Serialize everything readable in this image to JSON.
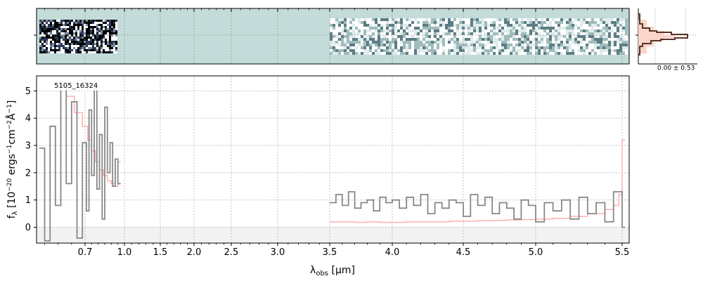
{
  "chart_data": {
    "type": "line",
    "object_label": "5105_16324",
    "xlabel": "λobs [μm]",
    "ylabel": "fλ [10⁻²⁰ ergs⁻¹cm⁻²Å⁻¹]",
    "xlim": [
      0.52,
      5.53
    ],
    "ylim": [
      -0.58,
      5.55
    ],
    "x_scale": "piecewise",
    "grid": true,
    "x_ticks": [
      0.7,
      1.0,
      1.5,
      2.0,
      2.5,
      3.0,
      3.5,
      4.0,
      4.5,
      5.0,
      5.5
    ],
    "x_tick_labels": [
      "0.7",
      "1.0",
      "1.5",
      "2.0",
      "2.5",
      "3.0",
      "3.5",
      "4.0",
      "4.5",
      "5.0",
      "5.5"
    ],
    "y_ticks": [
      0,
      1,
      2,
      3,
      4,
      5
    ],
    "y_tick_labels": [
      "0",
      "1",
      "2",
      "3",
      "4",
      "5"
    ],
    "series": [
      {
        "color": "#888888",
        "x": [
          0.53,
          0.55,
          0.57,
          0.59,
          0.61,
          0.63,
          0.65,
          0.67,
          0.69,
          0.71,
          0.73,
          0.75,
          0.77,
          0.79,
          0.81,
          0.83,
          0.85,
          0.87,
          0.89,
          0.91,
          0.93,
          0.95,
          3.5,
          3.55,
          3.6,
          3.65,
          3.7,
          3.75,
          3.8,
          3.85,
          3.9,
          3.95,
          4.0,
          4.05,
          4.1,
          4.15,
          4.2,
          4.25,
          4.3,
          4.35,
          4.4,
          4.45,
          4.5,
          4.55,
          4.6,
          4.65,
          4.7,
          4.75,
          4.8,
          4.85,
          4.9,
          4.95,
          5.0,
          5.05,
          5.1,
          5.15,
          5.2,
          5.25,
          5.3,
          5.35,
          5.4,
          5.45,
          5.5
        ],
        "y": [
          2.9,
          -0.5,
          3.7,
          0.8,
          5.3,
          1.6,
          4.6,
          -0.4,
          3.1,
          0.6,
          4.3,
          1.9,
          5.1,
          1.4,
          3.4,
          0.3,
          4.4,
          2.0,
          3.1,
          1.5,
          2.5,
          1.6,
          0.9,
          1.2,
          0.8,
          1.3,
          0.7,
          0.9,
          1.0,
          0.6,
          1.1,
          0.9,
          1.0,
          0.7,
          1.1,
          0.8,
          1.2,
          0.5,
          0.9,
          0.7,
          1.0,
          0.9,
          0.4,
          1.2,
          0.8,
          1.1,
          0.5,
          0.9,
          0.7,
          0.3,
          1.0,
          0.8,
          0.2,
          0.9,
          0.6,
          1.0,
          0.3,
          1.1,
          0.5,
          0.9,
          0.2,
          1.3,
          0.0
        ]
      },
      {
        "color": "#ffb0b0",
        "x": [
          0.6,
          0.63,
          0.66,
          0.69,
          0.72,
          0.75,
          0.78,
          0.81,
          0.84,
          0.87,
          0.9,
          0.93,
          0.95,
          3.5,
          3.6,
          3.7,
          3.8,
          3.9,
          4.0,
          4.1,
          4.2,
          4.3,
          4.4,
          4.5,
          4.6,
          4.7,
          4.8,
          4.9,
          5.0,
          5.1,
          5.2,
          5.3,
          5.4,
          5.45,
          5.48,
          5.5
        ],
        "y": [
          5.2,
          4.8,
          4.2,
          3.7,
          3.2,
          2.8,
          2.4,
          2.1,
          1.9,
          1.7,
          1.6,
          1.5,
          2.4,
          0.2,
          0.2,
          0.18,
          0.2,
          0.18,
          0.18,
          0.2,
          0.2,
          0.2,
          0.22,
          0.22,
          0.24,
          0.25,
          0.27,
          0.28,
          0.3,
          0.33,
          0.4,
          0.5,
          0.65,
          0.8,
          1.2,
          3.2
        ]
      }
    ],
    "side_panel_label": "0.00 ± 0.53"
  }
}
